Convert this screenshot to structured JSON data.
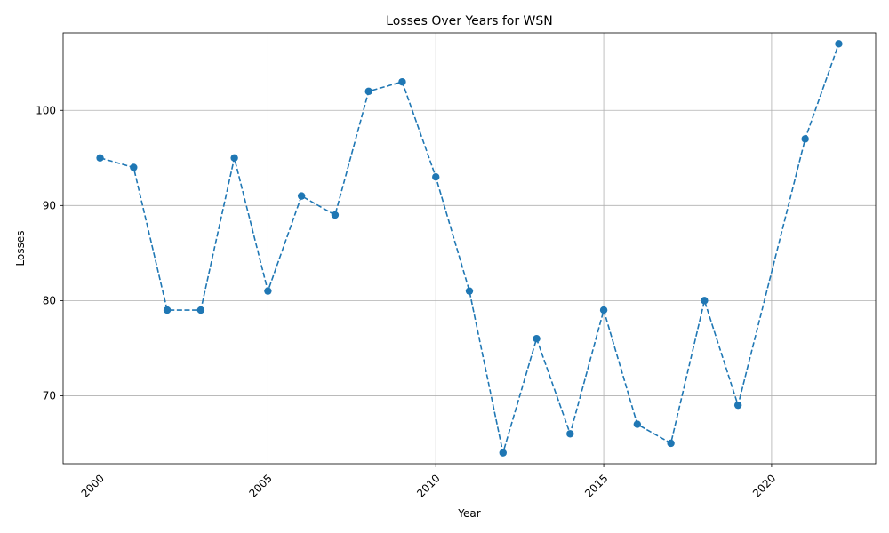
{
  "chart_data": {
    "type": "line",
    "title": "Losses Over Years for WSN",
    "xlabel": "Year",
    "ylabel": "Losses",
    "x_ticks": [
      "2000",
      "2005",
      "2010",
      "2015",
      "2020"
    ],
    "y_ticks": [
      "70",
      "80",
      "90",
      "100"
    ],
    "xlim": [
      1998.9,
      2023.1
    ],
    "ylim": [
      62.85,
      108.15
    ],
    "grid": true,
    "x_tick_rotation_deg": 45,
    "series": [
      {
        "color": "#1f77b4",
        "line_style": "dashed",
        "marker": "circle",
        "points": [
          {
            "x": 2000,
            "y": 95
          },
          {
            "x": 2001,
            "y": 94
          },
          {
            "x": 2002,
            "y": 79
          },
          {
            "x": 2003,
            "y": 79
          },
          {
            "x": 2004,
            "y": 95
          },
          {
            "x": 2005,
            "y": 81
          },
          {
            "x": 2006,
            "y": 91
          },
          {
            "x": 2007,
            "y": 89
          },
          {
            "x": 2008,
            "y": 102
          },
          {
            "x": 2009,
            "y": 103
          },
          {
            "x": 2010,
            "y": 93
          },
          {
            "x": 2011,
            "y": 81
          },
          {
            "x": 2012,
            "y": 64
          },
          {
            "x": 2013,
            "y": 76
          },
          {
            "x": 2014,
            "y": 66
          },
          {
            "x": 2015,
            "y": 79
          },
          {
            "x": 2016,
            "y": 67
          },
          {
            "x": 2017,
            "y": 65
          },
          {
            "x": 2018,
            "y": 80
          },
          {
            "x": 2019,
            "y": 69
          },
          {
            "x": 2021,
            "y": 97
          },
          {
            "x": 2022,
            "y": 107
          }
        ]
      }
    ]
  }
}
